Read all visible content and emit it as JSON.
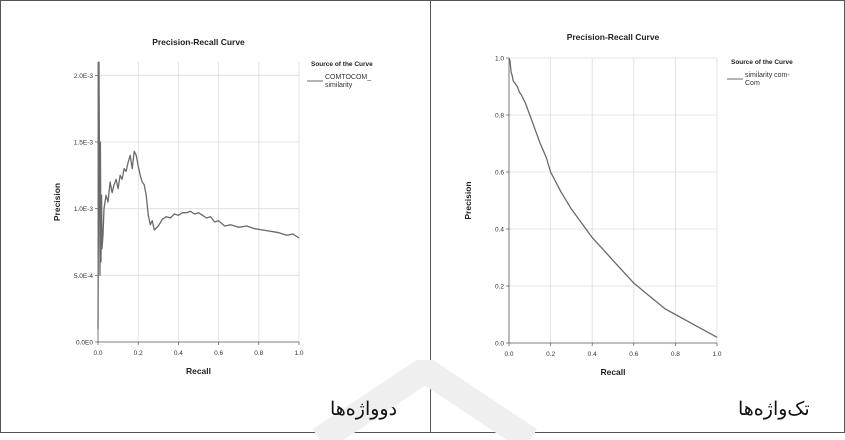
{
  "captions": {
    "left": "دوواژه‌ها",
    "right": "تک‌واژه‌ها"
  },
  "chart_data": [
    {
      "type": "line",
      "title": "Precision-Recall Curve",
      "xlabel": "Recall",
      "ylabel": "Precision",
      "xlim": [
        0,
        1
      ],
      "ylim": [
        0,
        0.0021
      ],
      "x_ticks": [
        "0.0",
        "0.2",
        "0.4",
        "0.6",
        "0.8",
        "1.0"
      ],
      "y_ticks": [
        {
          "value": 0,
          "label": "0.0E0"
        },
        {
          "value": 0.0005,
          "label": "5.0E-4"
        },
        {
          "value": 0.001,
          "label": "1.0E-3"
        },
        {
          "value": 0.0015,
          "label": "1.5E-3"
        },
        {
          "value": 0.002,
          "label": "2.0E-3"
        }
      ],
      "grid": true,
      "legend": {
        "title": "Source of the Curve",
        "position": "top-right"
      },
      "series": [
        {
          "name": "COMTOCOM_ similarity",
          "color": "#6a6a6a",
          "x": [
            0.0,
            0.005,
            0.01,
            0.012,
            0.015,
            0.018,
            0.02,
            0.025,
            0.03,
            0.04,
            0.05,
            0.06,
            0.07,
            0.08,
            0.09,
            0.1,
            0.11,
            0.12,
            0.13,
            0.14,
            0.15,
            0.16,
            0.17,
            0.18,
            0.19,
            0.2,
            0.21,
            0.22,
            0.23,
            0.24,
            0.25,
            0.26,
            0.27,
            0.28,
            0.3,
            0.32,
            0.34,
            0.36,
            0.38,
            0.4,
            0.42,
            0.44,
            0.46,
            0.48,
            0.5,
            0.52,
            0.54,
            0.56,
            0.58,
            0.6,
            0.63,
            0.66,
            0.7,
            0.74,
            0.78,
            0.82,
            0.86,
            0.9,
            0.94,
            0.97,
            1.0
          ],
          "y": [
            0.0001,
            0.0021,
            0.0005,
            0.0015,
            0.0006,
            0.0011,
            0.0007,
            0.0008,
            0.001,
            0.0011,
            0.00105,
            0.0012,
            0.00112,
            0.00118,
            0.00122,
            0.00115,
            0.00125,
            0.00122,
            0.0013,
            0.00128,
            0.00135,
            0.0014,
            0.0013,
            0.00143,
            0.0014,
            0.00132,
            0.00125,
            0.0012,
            0.00118,
            0.0011,
            0.00095,
            0.00088,
            0.00091,
            0.00084,
            0.00087,
            0.00092,
            0.00094,
            0.00093,
            0.00096,
            0.00095,
            0.00097,
            0.00097,
            0.00098,
            0.00096,
            0.00097,
            0.00095,
            0.00093,
            0.00094,
            0.0009,
            0.00091,
            0.00087,
            0.00088,
            0.00086,
            0.00087,
            0.00085,
            0.00084,
            0.00083,
            0.00082,
            0.0008,
            0.00081,
            0.00078
          ]
        }
      ]
    },
    {
      "type": "line",
      "title": "Precision-Recall Curve",
      "xlabel": "Recall",
      "ylabel": "Precision",
      "xlim": [
        0,
        1
      ],
      "ylim": [
        0,
        1
      ],
      "x_ticks": [
        "0.0",
        "0.2",
        "0.4",
        "0.6",
        "0.8",
        "1.0"
      ],
      "y_ticks": [
        {
          "value": 0,
          "label": "0.0"
        },
        {
          "value": 0.2,
          "label": "0.2"
        },
        {
          "value": 0.4,
          "label": "0.4"
        },
        {
          "value": 0.6,
          "label": "0.6"
        },
        {
          "value": 0.8,
          "label": "0.8"
        },
        {
          "value": 1.0,
          "label": "1.0"
        }
      ],
      "grid": true,
      "legend": {
        "title": "Source of the Curve",
        "position": "top-right"
      },
      "series": [
        {
          "name": "similarity com-Com",
          "color": "#6a6a6a",
          "x": [
            0.0,
            0.005,
            0.01,
            0.015,
            0.02,
            0.03,
            0.04,
            0.05,
            0.06,
            0.08,
            0.1,
            0.12,
            0.15,
            0.18,
            0.2,
            0.25,
            0.3,
            0.35,
            0.4,
            0.45,
            0.5,
            0.55,
            0.6,
            0.65,
            0.7,
            0.75,
            0.8,
            0.85,
            0.9,
            0.95,
            1.0
          ],
          "y": [
            1.0,
            0.99,
            0.95,
            0.94,
            0.92,
            0.91,
            0.9,
            0.88,
            0.87,
            0.84,
            0.8,
            0.76,
            0.7,
            0.65,
            0.6,
            0.53,
            0.47,
            0.42,
            0.37,
            0.33,
            0.29,
            0.25,
            0.21,
            0.18,
            0.15,
            0.12,
            0.1,
            0.08,
            0.06,
            0.04,
            0.02
          ]
        }
      ]
    }
  ]
}
